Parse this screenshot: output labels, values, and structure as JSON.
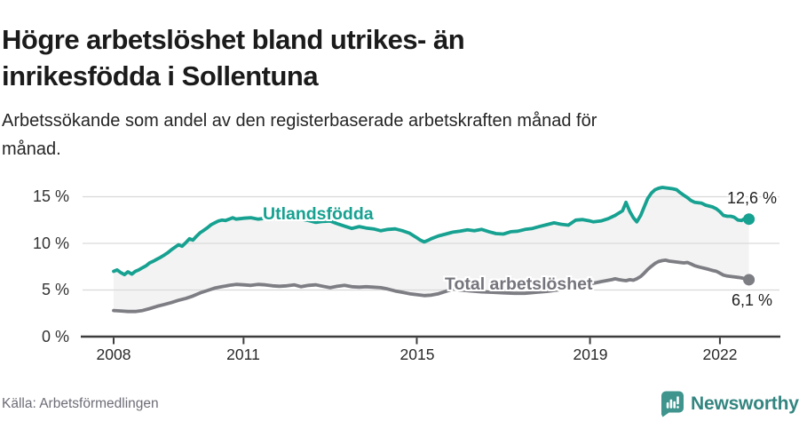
{
  "header": {
    "title": "Högre arbetslöshet bland utrikes- än\ninrikesfödda i Sollentuna",
    "subtitle": "Arbetssökande som andel av den registerbaserade arbetskraften månad för\nmånad."
  },
  "footer": {
    "source": "Källa: Arbetsförmedlingen",
    "brand": "Newsworthy"
  },
  "colors": {
    "teal": "#16a191",
    "gray": "#7d7d84",
    "gray_label": "#74747c",
    "gridline": "#d9d9d9",
    "axis": "#3d3d3d",
    "fill_between": "#f3f3f3",
    "brand_teal": "#338580"
  },
  "chart_data": {
    "type": "line",
    "title": "Högre arbetslöshet bland utrikes- än inrikesfödda i Sollentuna",
    "subtitle": "Arbetssökande som andel av den registerbaserade arbetskraften månad för månad.",
    "unit": "%",
    "grid": "horizontal",
    "x_axis": {
      "range": [
        2007.3,
        2023.4
      ],
      "ticks": [
        {
          "label": "2008",
          "year": 2008
        },
        {
          "label": "2011",
          "year": 2011
        },
        {
          "label": "2015",
          "year": 2015
        },
        {
          "label": "2019",
          "year": 2019
        },
        {
          "label": "2022",
          "year": 2022
        }
      ]
    },
    "y_axis": {
      "range": [
        0,
        16.5
      ],
      "ticks": [
        {
          "label": "0 %",
          "value": 0
        },
        {
          "label": "5 %",
          "value": 5
        },
        {
          "label": "10 %",
          "value": 10
        },
        {
          "label": "15 %",
          "value": 15
        }
      ]
    },
    "fill_between_series": true,
    "series": [
      {
        "name": "Utlandsfödda",
        "color": "#16a191",
        "end_label": "12,6 %",
        "end_value": 12.6,
        "points": [
          [
            2008.0,
            7.0
          ],
          [
            2008.08,
            7.15
          ],
          [
            2008.17,
            6.85
          ],
          [
            2008.25,
            6.65
          ],
          [
            2008.33,
            6.95
          ],
          [
            2008.42,
            6.7
          ],
          [
            2008.5,
            7.0
          ],
          [
            2008.58,
            7.15
          ],
          [
            2008.67,
            7.4
          ],
          [
            2008.75,
            7.6
          ],
          [
            2008.83,
            7.9
          ],
          [
            2008.92,
            8.1
          ],
          [
            2009.0,
            8.3
          ],
          [
            2009.08,
            8.5
          ],
          [
            2009.17,
            8.75
          ],
          [
            2009.25,
            9.0
          ],
          [
            2009.33,
            9.3
          ],
          [
            2009.42,
            9.6
          ],
          [
            2009.5,
            9.85
          ],
          [
            2009.58,
            9.7
          ],
          [
            2009.67,
            10.1
          ],
          [
            2009.75,
            10.5
          ],
          [
            2009.83,
            10.35
          ],
          [
            2009.92,
            10.8
          ],
          [
            2010.0,
            11.15
          ],
          [
            2010.08,
            11.4
          ],
          [
            2010.17,
            11.7
          ],
          [
            2010.25,
            12.0
          ],
          [
            2010.33,
            12.2
          ],
          [
            2010.42,
            12.4
          ],
          [
            2010.5,
            12.5
          ],
          [
            2010.58,
            12.45
          ],
          [
            2010.67,
            12.6
          ],
          [
            2010.75,
            12.75
          ],
          [
            2010.83,
            12.6
          ],
          [
            2010.92,
            12.65
          ],
          [
            2011.0,
            12.7
          ],
          [
            2011.17,
            12.75
          ],
          [
            2011.33,
            12.6
          ],
          [
            2011.5,
            12.7
          ],
          [
            2011.67,
            12.75
          ],
          [
            2011.83,
            12.65
          ],
          [
            2012.0,
            12.7
          ],
          [
            2012.17,
            12.75
          ],
          [
            2012.33,
            12.6
          ],
          [
            2012.5,
            12.45
          ],
          [
            2012.67,
            12.25
          ],
          [
            2012.83,
            12.35
          ],
          [
            2013.0,
            12.4
          ],
          [
            2013.17,
            12.1
          ],
          [
            2013.33,
            11.85
          ],
          [
            2013.5,
            11.6
          ],
          [
            2013.67,
            11.8
          ],
          [
            2013.83,
            11.65
          ],
          [
            2014.0,
            11.55
          ],
          [
            2014.17,
            11.35
          ],
          [
            2014.33,
            11.5
          ],
          [
            2014.5,
            11.55
          ],
          [
            2014.67,
            11.35
          ],
          [
            2014.83,
            11.1
          ],
          [
            2015.0,
            10.6
          ],
          [
            2015.08,
            10.35
          ],
          [
            2015.17,
            10.15
          ],
          [
            2015.25,
            10.3
          ],
          [
            2015.33,
            10.5
          ],
          [
            2015.5,
            10.8
          ],
          [
            2015.67,
            11.0
          ],
          [
            2015.83,
            11.2
          ],
          [
            2016.0,
            11.3
          ],
          [
            2016.17,
            11.45
          ],
          [
            2016.33,
            11.35
          ],
          [
            2016.5,
            11.5
          ],
          [
            2016.67,
            11.25
          ],
          [
            2016.83,
            11.05
          ],
          [
            2017.0,
            11.0
          ],
          [
            2017.17,
            11.25
          ],
          [
            2017.33,
            11.3
          ],
          [
            2017.5,
            11.5
          ],
          [
            2017.67,
            11.6
          ],
          [
            2017.83,
            11.8
          ],
          [
            2018.0,
            12.0
          ],
          [
            2018.17,
            12.2
          ],
          [
            2018.33,
            12.05
          ],
          [
            2018.5,
            11.95
          ],
          [
            2018.67,
            12.5
          ],
          [
            2018.83,
            12.55
          ],
          [
            2019.0,
            12.4
          ],
          [
            2019.08,
            12.3
          ],
          [
            2019.25,
            12.4
          ],
          [
            2019.42,
            12.65
          ],
          [
            2019.58,
            13.0
          ],
          [
            2019.75,
            13.5
          ],
          [
            2019.83,
            14.4
          ],
          [
            2019.92,
            13.4
          ],
          [
            2020.0,
            12.75
          ],
          [
            2020.08,
            12.3
          ],
          [
            2020.17,
            13.0
          ],
          [
            2020.25,
            13.9
          ],
          [
            2020.33,
            14.8
          ],
          [
            2020.42,
            15.4
          ],
          [
            2020.5,
            15.75
          ],
          [
            2020.58,
            15.9
          ],
          [
            2020.67,
            16.0
          ],
          [
            2020.75,
            15.95
          ],
          [
            2020.83,
            15.9
          ],
          [
            2020.92,
            15.85
          ],
          [
            2021.0,
            15.75
          ],
          [
            2021.08,
            15.45
          ],
          [
            2021.17,
            15.15
          ],
          [
            2021.25,
            14.9
          ],
          [
            2021.33,
            14.6
          ],
          [
            2021.42,
            14.4
          ],
          [
            2021.5,
            14.35
          ],
          [
            2021.58,
            14.3
          ],
          [
            2021.67,
            14.1
          ],
          [
            2021.75,
            14.0
          ],
          [
            2021.83,
            13.9
          ],
          [
            2021.92,
            13.7
          ],
          [
            2022.0,
            13.4
          ],
          [
            2022.08,
            13.0
          ],
          [
            2022.17,
            12.9
          ],
          [
            2022.25,
            12.9
          ],
          [
            2022.33,
            12.8
          ],
          [
            2022.42,
            12.5
          ],
          [
            2022.5,
            12.45
          ],
          [
            2022.58,
            12.7
          ],
          [
            2022.67,
            12.6
          ]
        ]
      },
      {
        "name": "Total arbetslöshet",
        "color": "#7d7d84",
        "end_label": "6,1 %",
        "end_value": 6.1,
        "points": [
          [
            2008.0,
            2.8
          ],
          [
            2008.17,
            2.75
          ],
          [
            2008.33,
            2.7
          ],
          [
            2008.5,
            2.7
          ],
          [
            2008.67,
            2.8
          ],
          [
            2008.83,
            3.0
          ],
          [
            2009.0,
            3.25
          ],
          [
            2009.17,
            3.45
          ],
          [
            2009.33,
            3.65
          ],
          [
            2009.5,
            3.9
          ],
          [
            2009.67,
            4.1
          ],
          [
            2009.83,
            4.35
          ],
          [
            2010.0,
            4.7
          ],
          [
            2010.17,
            4.95
          ],
          [
            2010.33,
            5.2
          ],
          [
            2010.5,
            5.35
          ],
          [
            2010.67,
            5.5
          ],
          [
            2010.83,
            5.6
          ],
          [
            2011.0,
            5.55
          ],
          [
            2011.17,
            5.5
          ],
          [
            2011.33,
            5.6
          ],
          [
            2011.5,
            5.55
          ],
          [
            2011.67,
            5.45
          ],
          [
            2011.83,
            5.4
          ],
          [
            2012.0,
            5.45
          ],
          [
            2012.17,
            5.55
          ],
          [
            2012.33,
            5.35
          ],
          [
            2012.5,
            5.5
          ],
          [
            2012.67,
            5.55
          ],
          [
            2012.83,
            5.4
          ],
          [
            2013.0,
            5.25
          ],
          [
            2013.17,
            5.4
          ],
          [
            2013.33,
            5.5
          ],
          [
            2013.5,
            5.35
          ],
          [
            2013.67,
            5.3
          ],
          [
            2013.83,
            5.35
          ],
          [
            2014.0,
            5.3
          ],
          [
            2014.17,
            5.25
          ],
          [
            2014.33,
            5.1
          ],
          [
            2014.5,
            4.9
          ],
          [
            2014.67,
            4.75
          ],
          [
            2014.83,
            4.6
          ],
          [
            2015.0,
            4.5
          ],
          [
            2015.17,
            4.4
          ],
          [
            2015.33,
            4.45
          ],
          [
            2015.5,
            4.6
          ],
          [
            2015.67,
            4.85
          ],
          [
            2015.83,
            5.1
          ],
          [
            2016.0,
            5.0
          ],
          [
            2016.25,
            4.9
          ],
          [
            2016.5,
            4.8
          ],
          [
            2016.75,
            4.75
          ],
          [
            2017.0,
            4.7
          ],
          [
            2017.25,
            4.65
          ],
          [
            2017.5,
            4.65
          ],
          [
            2017.75,
            4.75
          ],
          [
            2018.0,
            4.85
          ],
          [
            2018.25,
            5.0
          ],
          [
            2018.5,
            5.2
          ],
          [
            2018.75,
            5.45
          ],
          [
            2019.0,
            5.65
          ],
          [
            2019.25,
            5.9
          ],
          [
            2019.5,
            6.1
          ],
          [
            2019.58,
            6.2
          ],
          [
            2019.67,
            6.1
          ],
          [
            2019.75,
            6.05
          ],
          [
            2019.83,
            6.0
          ],
          [
            2019.92,
            6.1
          ],
          [
            2020.0,
            6.05
          ],
          [
            2020.08,
            6.2
          ],
          [
            2020.17,
            6.45
          ],
          [
            2020.25,
            6.8
          ],
          [
            2020.33,
            7.2
          ],
          [
            2020.42,
            7.55
          ],
          [
            2020.5,
            7.85
          ],
          [
            2020.58,
            8.05
          ],
          [
            2020.67,
            8.15
          ],
          [
            2020.75,
            8.2
          ],
          [
            2020.83,
            8.1
          ],
          [
            2020.92,
            8.05
          ],
          [
            2021.0,
            8.0
          ],
          [
            2021.08,
            7.95
          ],
          [
            2021.17,
            7.9
          ],
          [
            2021.25,
            7.95
          ],
          [
            2021.33,
            7.8
          ],
          [
            2021.42,
            7.6
          ],
          [
            2021.5,
            7.5
          ],
          [
            2021.58,
            7.4
          ],
          [
            2021.67,
            7.3
          ],
          [
            2021.75,
            7.2
          ],
          [
            2021.83,
            7.1
          ],
          [
            2021.92,
            7.0
          ],
          [
            2022.0,
            6.8
          ],
          [
            2022.08,
            6.6
          ],
          [
            2022.17,
            6.5
          ],
          [
            2022.25,
            6.45
          ],
          [
            2022.33,
            6.4
          ],
          [
            2022.42,
            6.35
          ],
          [
            2022.5,
            6.3
          ],
          [
            2022.58,
            6.2
          ],
          [
            2022.67,
            6.1
          ]
        ]
      }
    ]
  }
}
